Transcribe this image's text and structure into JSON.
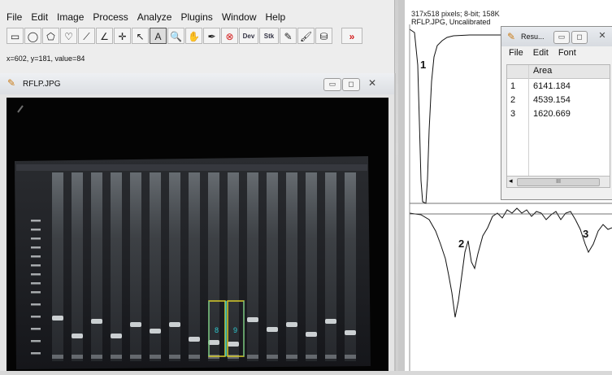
{
  "menubar": {
    "items": [
      "File",
      "Edit",
      "Image",
      "Process",
      "Analyze",
      "Plugins",
      "Window",
      "Help"
    ]
  },
  "toolbar": {
    "tools": [
      {
        "name": "rectangle-tool-icon",
        "glyph": "▭"
      },
      {
        "name": "oval-tool-icon",
        "glyph": "◯"
      },
      {
        "name": "polygon-tool-icon",
        "glyph": "⬠"
      },
      {
        "name": "freehand-tool-icon",
        "glyph": "♡"
      },
      {
        "name": "line-tool-icon",
        "glyph": "⟋"
      },
      {
        "name": "angle-tool-icon",
        "glyph": "∠"
      },
      {
        "name": "point-tool-icon",
        "glyph": "✛"
      },
      {
        "name": "wand-tool-icon",
        "glyph": "↖"
      },
      {
        "name": "text-tool-icon",
        "glyph": "A"
      },
      {
        "name": "magnifier-tool-icon",
        "glyph": "🔍"
      },
      {
        "name": "scroll-tool-icon",
        "glyph": "✋"
      },
      {
        "name": "color-picker-icon",
        "glyph": "✒"
      },
      {
        "name": "stop-tool-icon",
        "glyph": "⊗"
      },
      {
        "name": "dev-tool-icon",
        "glyph": "Dev"
      },
      {
        "name": "stk-tool-icon",
        "glyph": "Stk"
      },
      {
        "name": "pencil-tool-icon",
        "glyph": "✎"
      },
      {
        "name": "brush-tool-icon",
        "glyph": "🖌"
      },
      {
        "name": "flood-fill-icon",
        "glyph": "⛁"
      },
      {
        "name": "more-tools-icon",
        "glyph": "»"
      }
    ]
  },
  "status": {
    "text": "x=602, y=181, value=84"
  },
  "image_window": {
    "title": "RFLP.JPG",
    "selection_labels": [
      "8",
      "9"
    ]
  },
  "plot_window": {
    "info": "317x518 pixels; 8-bit; 158K",
    "title": "RFLP.JPG, Uncalibrated",
    "peak_labels": [
      "1",
      "2",
      "3"
    ]
  },
  "results_window": {
    "title": "Resu...",
    "menu": [
      "File",
      "Edit",
      "Font"
    ],
    "column_header": "Area",
    "rows": [
      {
        "index": "1",
        "area": "6141.184"
      },
      {
        "index": "2",
        "area": "4539.154"
      },
      {
        "index": "3",
        "area": "1620.669"
      }
    ],
    "scroll_label": "III"
  },
  "colors": {
    "selection_yellow": "#d8cc2a",
    "selection_cyan": "#2ec9d0",
    "accent_red": "#d31a1a"
  }
}
